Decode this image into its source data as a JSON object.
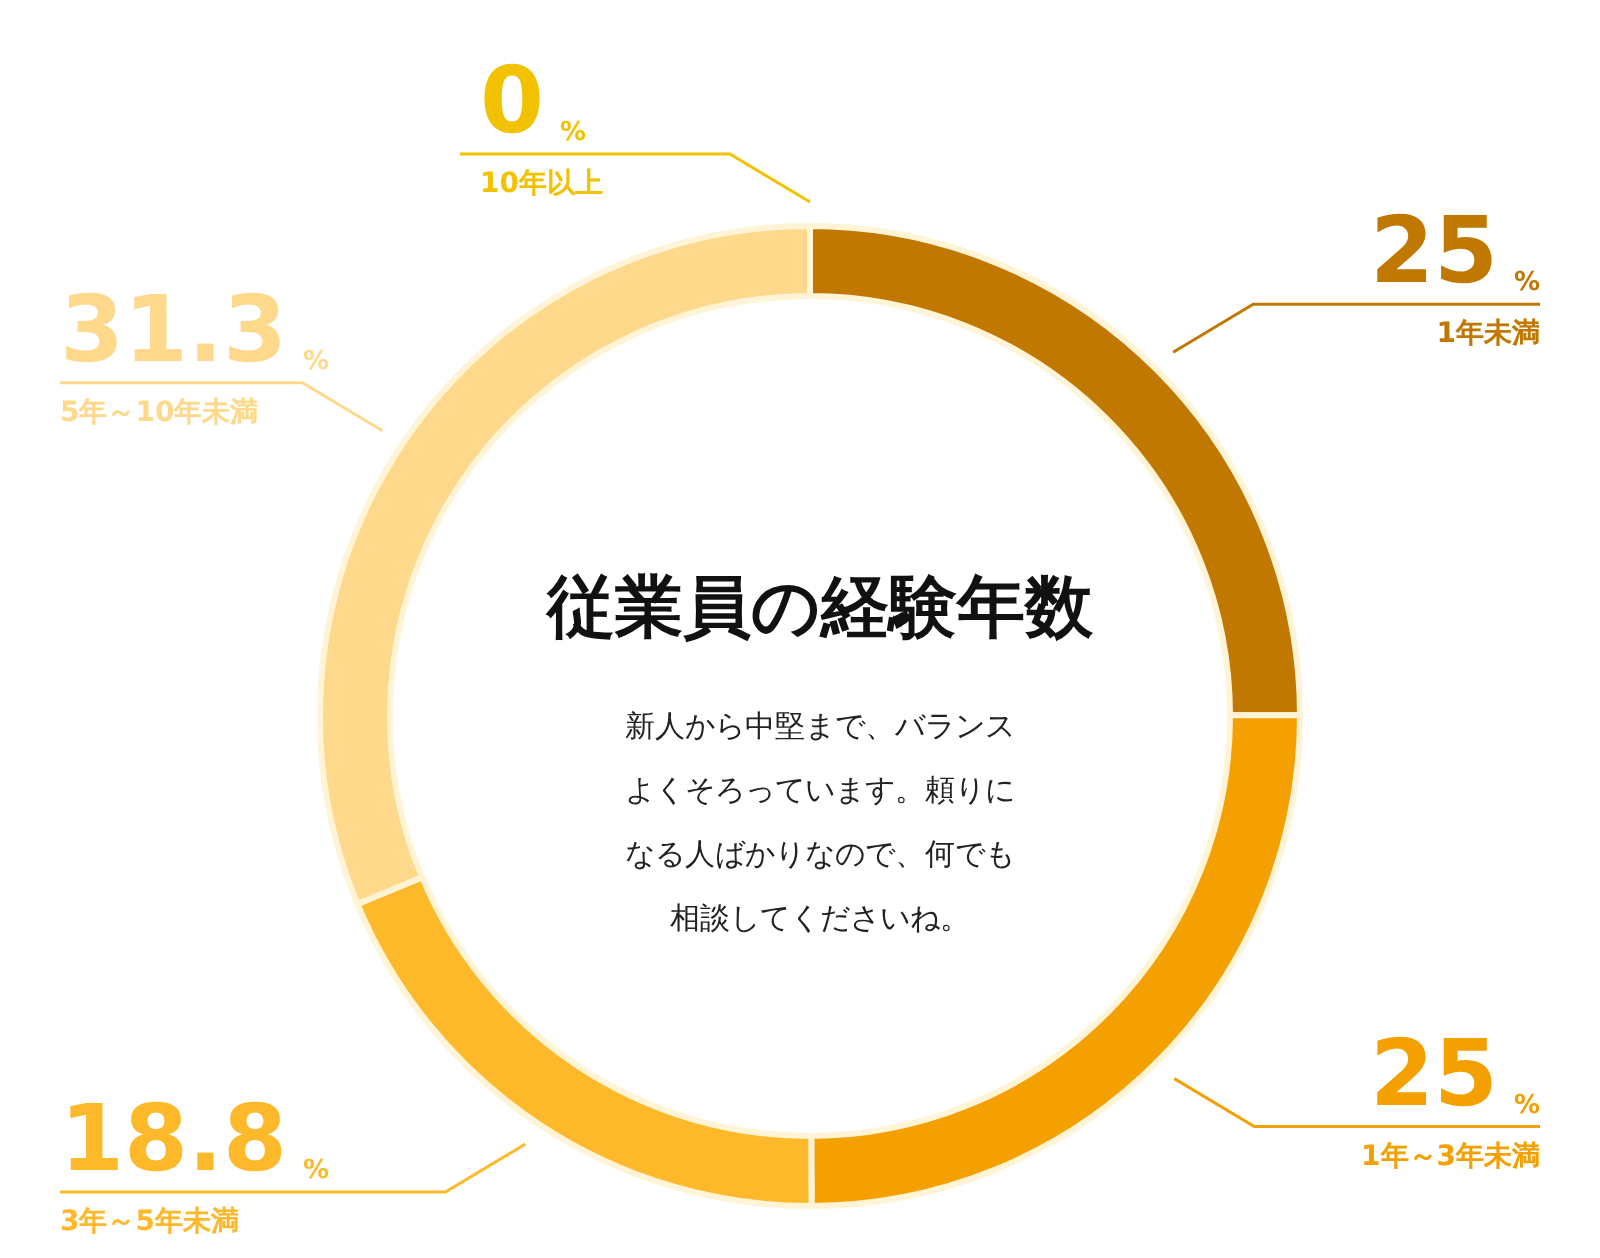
{
  "chart_data": {
    "type": "donut",
    "title": "従業員の経験年数",
    "subtitle": "新人から中堅まで、バランスよくそろっています。頼りになる人ばかりなので、何でも相談してくださいね。",
    "categories": [
      "10年以上",
      "1年未満",
      "1年～3年未満",
      "3年～5年未満",
      "5年～10年未満"
    ],
    "values": [
      0,
      25,
      25,
      18.8,
      31.3
    ],
    "value_labels": [
      "0%",
      "25%",
      "25%",
      "18.8%",
      "31.3%"
    ],
    "colors": [
      "#f2c200",
      "#c07800",
      "#f3a000",
      "#fdb92a",
      "#fed98c"
    ],
    "legend": false
  }
}
